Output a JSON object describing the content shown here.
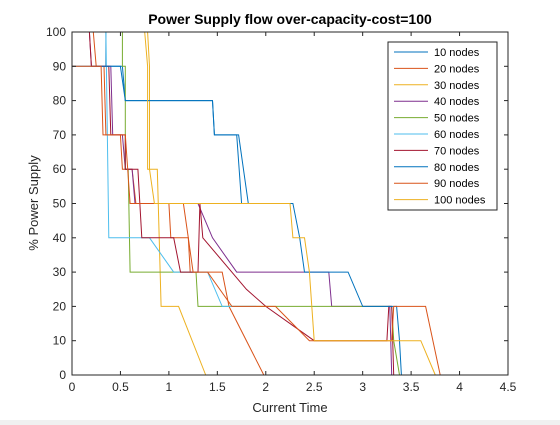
{
  "chart_data": {
    "type": "line",
    "title": "Power Supply flow  over-capacity-cost=100",
    "xlabel": "Current Time",
    "ylabel": "% Power Supply",
    "xlim": [
      0,
      4.5
    ],
    "ylim": [
      0,
      100
    ],
    "xticks": [
      0,
      0.5,
      1,
      1.5,
      2,
      2.5,
      3,
      3.5,
      4,
      4.5
    ],
    "xtick_labels": [
      "0",
      "0.5",
      "1",
      "1.5",
      "2",
      "2.5",
      "3",
      "3.5",
      "4",
      "4.5"
    ],
    "yticks": [
      0,
      10,
      20,
      30,
      40,
      50,
      60,
      70,
      80,
      90,
      100
    ],
    "ytick_labels": [
      "0",
      "10",
      "20",
      "30",
      "40",
      "50",
      "60",
      "70",
      "80",
      "90",
      "100"
    ],
    "grid": false,
    "legend_position": "top-right",
    "series": [
      {
        "name": "10 nodes",
        "color": "#0072BD",
        "points": [
          [
            0,
            100
          ],
          [
            0.35,
            100
          ],
          [
            0.35,
            90
          ],
          [
            0.52,
            90
          ],
          [
            0.55,
            80
          ],
          [
            1.45,
            80
          ],
          [
            1.47,
            70
          ],
          [
            1.72,
            70
          ],
          [
            1.82,
            50
          ],
          [
            1.85,
            50
          ]
        ]
      },
      {
        "name": "20 nodes",
        "color": "#D95319",
        "points": [
          [
            0,
            100
          ],
          [
            0.22,
            100
          ],
          [
            0.25,
            90
          ],
          [
            0.33,
            90
          ],
          [
            0.35,
            70
          ],
          [
            0.5,
            70
          ],
          [
            0.52,
            60
          ],
          [
            0.62,
            60
          ],
          [
            0.66,
            50
          ],
          [
            1.0,
            50
          ],
          [
            1.02,
            40
          ],
          [
            1.2,
            40
          ],
          [
            1.22,
            30
          ],
          [
            1.55,
            30
          ],
          [
            1.62,
            20
          ],
          [
            1.98,
            0
          ]
        ]
      },
      {
        "name": "30 nodes",
        "color": "#EDB120",
        "points": [
          [
            0,
            100
          ],
          [
            0.78,
            100
          ],
          [
            0.8,
            90
          ],
          [
            0.8,
            60
          ],
          [
            0.88,
            60
          ],
          [
            0.92,
            20
          ],
          [
            1.1,
            20
          ],
          [
            1.38,
            0
          ]
        ]
      },
      {
        "name": "40 nodes",
        "color": "#7E2F8E",
        "points": [
          [
            0,
            100
          ],
          [
            0.18,
            100
          ],
          [
            0.2,
            90
          ],
          [
            0.4,
            90
          ],
          [
            0.42,
            70
          ],
          [
            0.52,
            70
          ],
          [
            0.55,
            60
          ],
          [
            0.62,
            60
          ],
          [
            0.65,
            50
          ],
          [
            1.3,
            50
          ],
          [
            1.45,
            40
          ],
          [
            1.7,
            30
          ],
          [
            2.65,
            30
          ],
          [
            2.68,
            20
          ],
          [
            3.28,
            20
          ],
          [
            3.3,
            0
          ]
        ]
      },
      {
        "name": "50 nodes",
        "color": "#77AC30",
        "points": [
          [
            0,
            100
          ],
          [
            0.52,
            100
          ],
          [
            0.52,
            90
          ],
          [
            0.55,
            90
          ],
          [
            0.55,
            60
          ],
          [
            0.58,
            60
          ],
          [
            0.6,
            30
          ],
          [
            1.28,
            30
          ],
          [
            1.3,
            20
          ],
          [
            3.3,
            20
          ],
          [
            3.32,
            10
          ],
          [
            3.38,
            0
          ]
        ]
      },
      {
        "name": "60 nodes",
        "color": "#4DBEEE",
        "points": [
          [
            0,
            100
          ],
          [
            0.35,
            100
          ],
          [
            0.38,
            40
          ],
          [
            0.72,
            40
          ],
          [
            0.8,
            40
          ],
          [
            1.05,
            30
          ],
          [
            1.4,
            30
          ],
          [
            1.55,
            20
          ],
          [
            1.9,
            20
          ]
        ]
      },
      {
        "name": "70 nodes",
        "color": "#A2142F",
        "points": [
          [
            0,
            100
          ],
          [
            0.18,
            100
          ],
          [
            0.2,
            90
          ],
          [
            0.38,
            90
          ],
          [
            0.4,
            70
          ],
          [
            0.55,
            70
          ],
          [
            0.55,
            60
          ],
          [
            0.68,
            60
          ],
          [
            0.72,
            40
          ],
          [
            1.05,
            40
          ],
          [
            1.12,
            30
          ],
          [
            1.3,
            30
          ],
          [
            1.32,
            50
          ],
          [
            1.35,
            40
          ],
          [
            1.8,
            25
          ],
          [
            2.0,
            20
          ],
          [
            2.5,
            10
          ],
          [
            3.0,
            10
          ],
          [
            3.25,
            10
          ],
          [
            3.27,
            20
          ],
          [
            3.3,
            20
          ],
          [
            3.32,
            0
          ]
        ]
      },
      {
        "name": "80 nodes",
        "color": "#0072BD",
        "points": [
          [
            0,
            90
          ],
          [
            0.5,
            90
          ],
          [
            0.55,
            80
          ],
          [
            1.45,
            80
          ],
          [
            1.47,
            70
          ],
          [
            1.7,
            70
          ],
          [
            1.75,
            50
          ],
          [
            2.2,
            50
          ],
          [
            2.28,
            50
          ],
          [
            2.35,
            40
          ],
          [
            2.4,
            30
          ],
          [
            2.85,
            30
          ],
          [
            3.0,
            20
          ],
          [
            3.35,
            20
          ],
          [
            3.38,
            10
          ],
          [
            3.4,
            0
          ]
        ]
      },
      {
        "name": "90 nodes",
        "color": "#D95319",
        "points": [
          [
            0,
            90
          ],
          [
            0.3,
            90
          ],
          [
            0.32,
            70
          ],
          [
            0.5,
            70
          ],
          [
            0.55,
            70
          ],
          [
            0.6,
            50
          ],
          [
            1.15,
            50
          ],
          [
            1.2,
            40
          ],
          [
            1.25,
            30
          ],
          [
            1.4,
            30
          ],
          [
            1.65,
            20
          ],
          [
            1.9,
            20
          ],
          [
            2.1,
            20
          ],
          [
            2.45,
            10
          ],
          [
            3.3,
            10
          ],
          [
            3.32,
            20
          ],
          [
            3.35,
            20
          ],
          [
            3.65,
            20
          ],
          [
            3.8,
            0
          ]
        ]
      },
      {
        "name": "100 nodes",
        "color": "#EDB120",
        "points": [
          [
            0,
            100
          ],
          [
            0.75,
            100
          ],
          [
            0.78,
            90
          ],
          [
            0.78,
            60
          ],
          [
            0.8,
            60
          ],
          [
            0.85,
            50
          ],
          [
            2.25,
            50
          ],
          [
            2.28,
            40
          ],
          [
            2.4,
            40
          ],
          [
            2.45,
            30
          ],
          [
            2.5,
            10
          ],
          [
            2.6,
            10
          ],
          [
            3.6,
            10
          ],
          [
            3.75,
            0
          ]
        ]
      }
    ]
  }
}
